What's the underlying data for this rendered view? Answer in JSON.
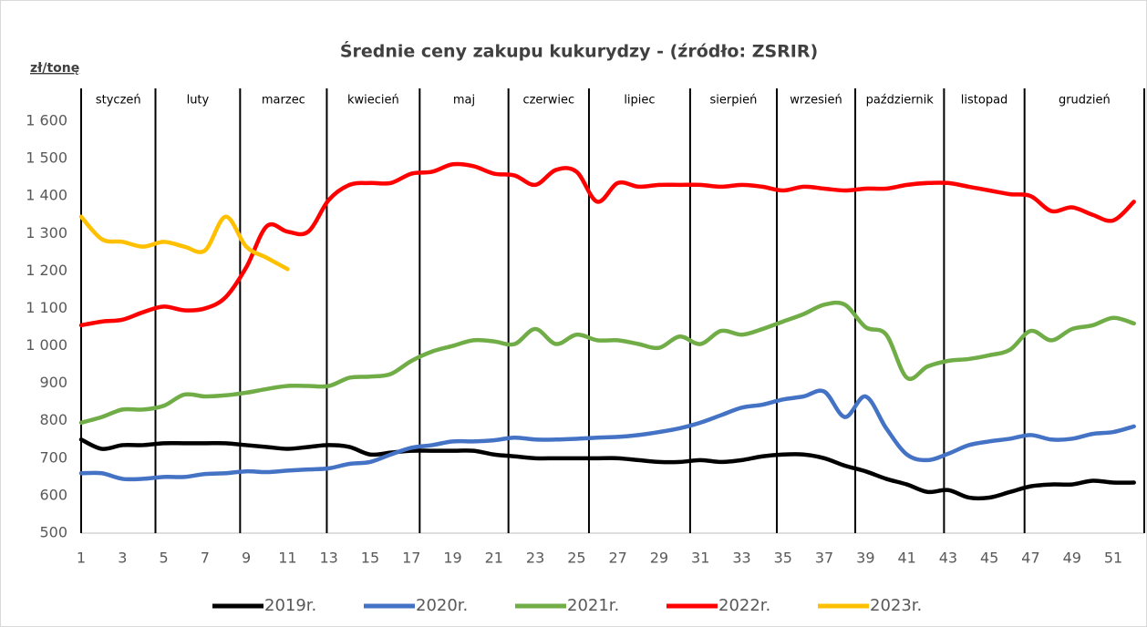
{
  "chart_data": {
    "type": "line",
    "title": "Średnie ceny zakupu kukurydzy - (źródło: ZSRIR)",
    "y_label": "zł/tonę",
    "x": [
      1,
      2,
      3,
      4,
      5,
      6,
      7,
      8,
      9,
      10,
      11,
      12,
      13,
      14,
      15,
      16,
      17,
      18,
      19,
      20,
      21,
      22,
      23,
      24,
      25,
      26,
      27,
      28,
      29,
      30,
      31,
      32,
      33,
      34,
      35,
      36,
      37,
      38,
      39,
      40,
      41,
      42,
      43,
      44,
      45,
      46,
      47,
      48,
      49,
      50,
      51,
      52
    ],
    "xlim": [
      1,
      52.5
    ],
    "xticks": [
      1,
      3,
      5,
      7,
      9,
      11,
      13,
      15,
      17,
      19,
      21,
      23,
      25,
      27,
      29,
      31,
      33,
      35,
      37,
      39,
      41,
      43,
      45,
      47,
      49,
      51
    ],
    "ylim": [
      500,
      1600
    ],
    "yticks": [
      500,
      600,
      700,
      800,
      900,
      {
        "value": 1000,
        "label": "1 000"
      },
      {
        "value": 1100,
        "label": "1 100"
      },
      {
        "value": 1200,
        "label": "1 200"
      },
      {
        "value": 1300,
        "label": "1 300"
      },
      {
        "value": 1400,
        "label": "1 400"
      },
      {
        "value": 1500,
        "label": "1 500"
      },
      {
        "value": 1600,
        "label": "1 600"
      }
    ],
    "months": [
      "styczeń",
      "luty",
      "marzec",
      "kwiecień",
      "maj",
      "czerwiec",
      "lipiec",
      "sierpień",
      "wrzesień",
      "październik",
      "listopad",
      "grudzień"
    ],
    "month_boundaries": [
      1,
      4.6,
      8.7,
      12.9,
      17.4,
      21.7,
      25.6,
      30.5,
      34.7,
      38.5,
      42.8,
      46.7,
      52.5
    ],
    "series": [
      {
        "name": "2019r.",
        "color": "#000000",
        "values": [
          750,
          725,
          735,
          735,
          740,
          740,
          740,
          740,
          735,
          730,
          725,
          730,
          735,
          730,
          710,
          715,
          720,
          720,
          720,
          720,
          710,
          705,
          700,
          700,
          700,
          700,
          700,
          695,
          690,
          690,
          695,
          690,
          695,
          705,
          710,
          710,
          700,
          680,
          665,
          645,
          630,
          610,
          615,
          595,
          595,
          610,
          625,
          630,
          630,
          640,
          635,
          635
        ]
      },
      {
        "name": "2020r.",
        "color": "#4472c4",
        "values": [
          660,
          660,
          645,
          645,
          650,
          650,
          658,
          660,
          665,
          663,
          667,
          670,
          673,
          685,
          690,
          710,
          728,
          735,
          745,
          745,
          748,
          755,
          750,
          750,
          752,
          755,
          757,
          762,
          770,
          780,
          795,
          815,
          835,
          843,
          857,
          865,
          878,
          810,
          865,
          780,
          710,
          695,
          712,
          735,
          745,
          752,
          762,
          750,
          752,
          765,
          770,
          785
        ]
      },
      {
        "name": "2021r.",
        "color": "#70ad47",
        "values": [
          795,
          810,
          830,
          830,
          840,
          870,
          865,
          868,
          875,
          885,
          893,
          893,
          893,
          915,
          918,
          925,
          960,
          985,
          1000,
          1015,
          1012,
          1005,
          1045,
          1005,
          1030,
          1015,
          1015,
          1005,
          995,
          1025,
          1005,
          1040,
          1030,
          1045,
          1065,
          1085,
          1110,
          1110,
          1050,
          1030,
          915,
          945,
          960,
          965,
          975,
          990,
          1040,
          1015,
          1045,
          1055,
          1075,
          1060
        ]
      },
      {
        "name": "2022r.",
        "color": "#ff0000",
        "values": [
          1055,
          1065,
          1070,
          1090,
          1105,
          1095,
          1100,
          1130,
          1210,
          1320,
          1305,
          1305,
          1390,
          1430,
          1435,
          1435,
          1460,
          1465,
          1485,
          1480,
          1460,
          1455,
          1430,
          1470,
          1465,
          1385,
          1435,
          1425,
          1430,
          1430,
          1430,
          1425,
          1430,
          1425,
          1415,
          1425,
          1420,
          1415,
          1420,
          1420,
          1430,
          1435,
          1435,
          1425,
          1415,
          1405,
          1400,
          1360,
          1370,
          1350,
          1335,
          1385
        ]
      },
      {
        "name": "2023r.",
        "color": "#ffc000",
        "values": [
          1345,
          1285,
          1278,
          1265,
          1278,
          1265,
          1255,
          1345,
          1265,
          1235,
          1205,
          null,
          null,
          null,
          null,
          null,
          null,
          null,
          null,
          null,
          null,
          null,
          null,
          null,
          null,
          null,
          null,
          null,
          null,
          null,
          null,
          null,
          null,
          null,
          null,
          null,
          null,
          null,
          null,
          null,
          null,
          null,
          null,
          null,
          null,
          null,
          null,
          null,
          null,
          null,
          null,
          null
        ]
      }
    ]
  }
}
